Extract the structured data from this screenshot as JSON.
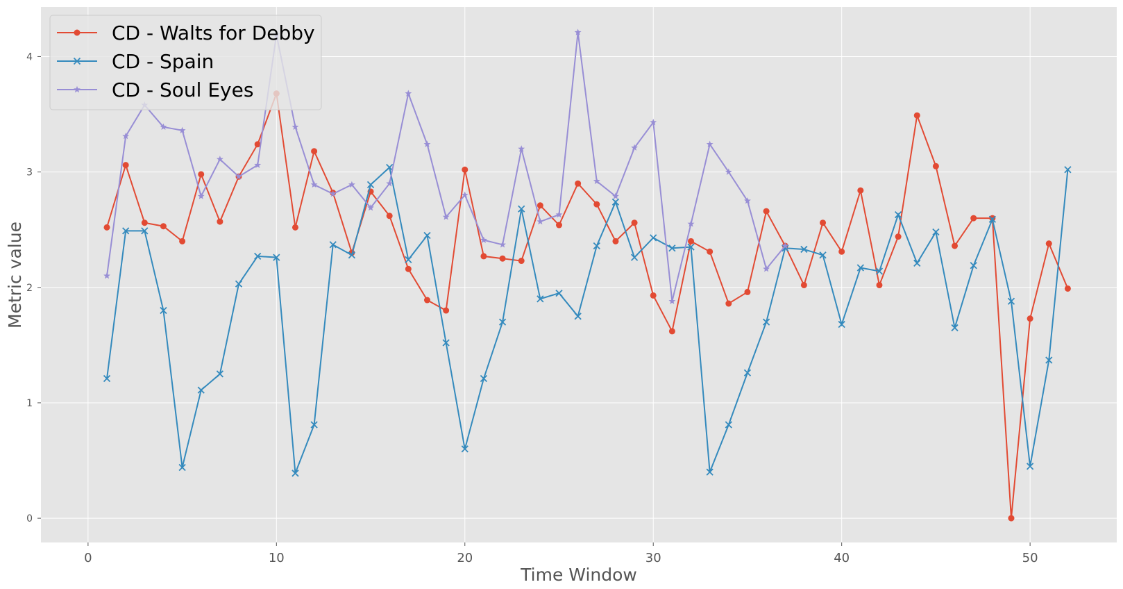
{
  "chart_data": {
    "type": "line",
    "title": "",
    "xlabel": "Time Window",
    "ylabel": "Metric value",
    "xlim": [
      -2.5,
      54.6
    ],
    "ylim": [
      -0.21,
      4.43
    ],
    "xticks": [
      0,
      10,
      20,
      30,
      40,
      50
    ],
    "yticks": [
      0,
      1,
      2,
      3,
      4
    ],
    "grid": true,
    "legend_position": "upper-left",
    "series": [
      {
        "name": "CD - Walts for Debby",
        "color": "#E24A33",
        "marker": "circle",
        "x": [
          1,
          2,
          3,
          4,
          5,
          6,
          7,
          8,
          9,
          10,
          11,
          12,
          13,
          14,
          15,
          16,
          17,
          18,
          19,
          20,
          21,
          22,
          23,
          24,
          25,
          26,
          27,
          28,
          29,
          30,
          31,
          32,
          33,
          34,
          35,
          36,
          37,
          38,
          39,
          40,
          41,
          42,
          43,
          44,
          45,
          46,
          47,
          48,
          49,
          50,
          51,
          52
        ],
        "values": [
          2.52,
          3.06,
          2.56,
          2.53,
          2.4,
          2.98,
          2.57,
          2.96,
          3.24,
          3.68,
          2.52,
          3.18,
          2.82,
          2.3,
          2.83,
          2.62,
          2.16,
          1.89,
          1.8,
          3.02,
          2.27,
          2.25,
          2.23,
          2.71,
          2.54,
          2.9,
          2.72,
          2.4,
          2.56,
          1.93,
          1.62,
          2.4,
          2.31,
          1.86,
          1.96,
          2.66,
          2.36,
          2.02,
          2.56,
          2.31,
          2.84,
          2.02,
          2.44,
          3.49,
          3.05,
          2.36,
          2.6,
          2.6,
          0.0,
          1.73,
          2.38,
          1.99
        ]
      },
      {
        "name": "CD - Spain",
        "color": "#348ABD",
        "marker": "x",
        "x": [
          1,
          2,
          3,
          4,
          5,
          6,
          7,
          8,
          9,
          10,
          11,
          12,
          13,
          14,
          15,
          16,
          17,
          18,
          19,
          20,
          21,
          22,
          23,
          24,
          25,
          26,
          27,
          28,
          29,
          30,
          31,
          32,
          33,
          34,
          35,
          36,
          37,
          38,
          39,
          40,
          41,
          42,
          43,
          44,
          45,
          46,
          47,
          48,
          49,
          50,
          51,
          52
        ],
        "values": [
          1.21,
          2.49,
          2.49,
          1.8,
          0.44,
          1.11,
          1.25,
          2.03,
          2.27,
          2.26,
          0.39,
          0.81,
          2.37,
          2.28,
          2.89,
          3.04,
          2.24,
          2.45,
          1.52,
          0.6,
          1.21,
          1.7,
          2.68,
          1.9,
          1.95,
          1.75,
          2.36,
          2.74,
          2.26,
          2.43,
          2.34,
          2.35,
          0.4,
          0.81,
          1.26,
          1.7,
          2.34,
          2.33,
          2.28,
          1.68,
          2.17,
          2.14,
          2.63,
          2.21,
          2.48,
          1.65,
          2.19,
          2.59,
          1.88,
          0.45,
          1.37,
          3.02
        ]
      },
      {
        "name": "CD - Soul Eyes",
        "color": "#988ED5",
        "marker": "star",
        "x": [
          1,
          2,
          3,
          4,
          5,
          6,
          7,
          8,
          9,
          10,
          11,
          12,
          13,
          14,
          15,
          16,
          17,
          18,
          19,
          20,
          21,
          22,
          23,
          24,
          25,
          26,
          27,
          28,
          29,
          30,
          31,
          32,
          33,
          34,
          35,
          36,
          37,
          38,
          39,
          40,
          41,
          42,
          43,
          44,
          45,
          46,
          47,
          48,
          49,
          50,
          51,
          52
        ],
        "values": [
          2.1,
          3.31,
          3.58,
          3.39,
          3.36,
          2.79,
          3.11,
          2.96,
          3.06,
          4.19,
          3.39,
          2.89,
          2.81,
          2.89,
          2.69,
          2.9,
          3.68,
          3.24,
          2.61,
          2.8,
          2.41,
          2.37,
          3.2,
          2.57,
          2.63,
          4.21,
          2.92,
          2.79,
          3.21,
          3.43,
          1.88,
          2.55,
          3.24,
          3.0,
          2.75,
          2.16,
          2.36,
          null,
          null,
          null,
          null,
          null,
          null,
          null,
          null,
          null,
          null,
          null,
          null,
          null,
          null,
          null
        ]
      }
    ]
  }
}
